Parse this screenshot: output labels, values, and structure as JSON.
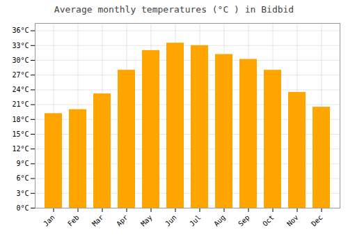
{
  "chart_data": {
    "type": "bar",
    "title": "Average monthly temperatures (°C ) in Bidbid",
    "categories": [
      "Jan",
      "Feb",
      "Mar",
      "Apr",
      "May",
      "Jun",
      "Jul",
      "Aug",
      "Sep",
      "Oct",
      "Nov",
      "Dec"
    ],
    "values": [
      19.2,
      20.0,
      23.2,
      28.0,
      32.0,
      33.5,
      33.0,
      31.2,
      30.2,
      28.0,
      23.5,
      20.5
    ],
    "color": "#FFA500",
    "ylim": [
      0,
      37.5
    ],
    "yticks": [
      {
        "value": 0,
        "label": "0°C"
      },
      {
        "value": 3,
        "label": "3°C"
      },
      {
        "value": 6,
        "label": "6°C"
      },
      {
        "value": 9,
        "label": "9°C"
      },
      {
        "value": 12,
        "label": "12°C"
      },
      {
        "value": 15,
        "label": "15°C"
      },
      {
        "value": 18,
        "label": "18°C"
      },
      {
        "value": 21,
        "label": "21°C"
      },
      {
        "value": 24,
        "label": "24°C"
      },
      {
        "value": 27,
        "label": "27°C"
      },
      {
        "value": 30,
        "label": "30°C"
      },
      {
        "value": 33,
        "label": "33°C"
      },
      {
        "value": 36,
        "label": "36°C"
      }
    ],
    "grid": true
  }
}
